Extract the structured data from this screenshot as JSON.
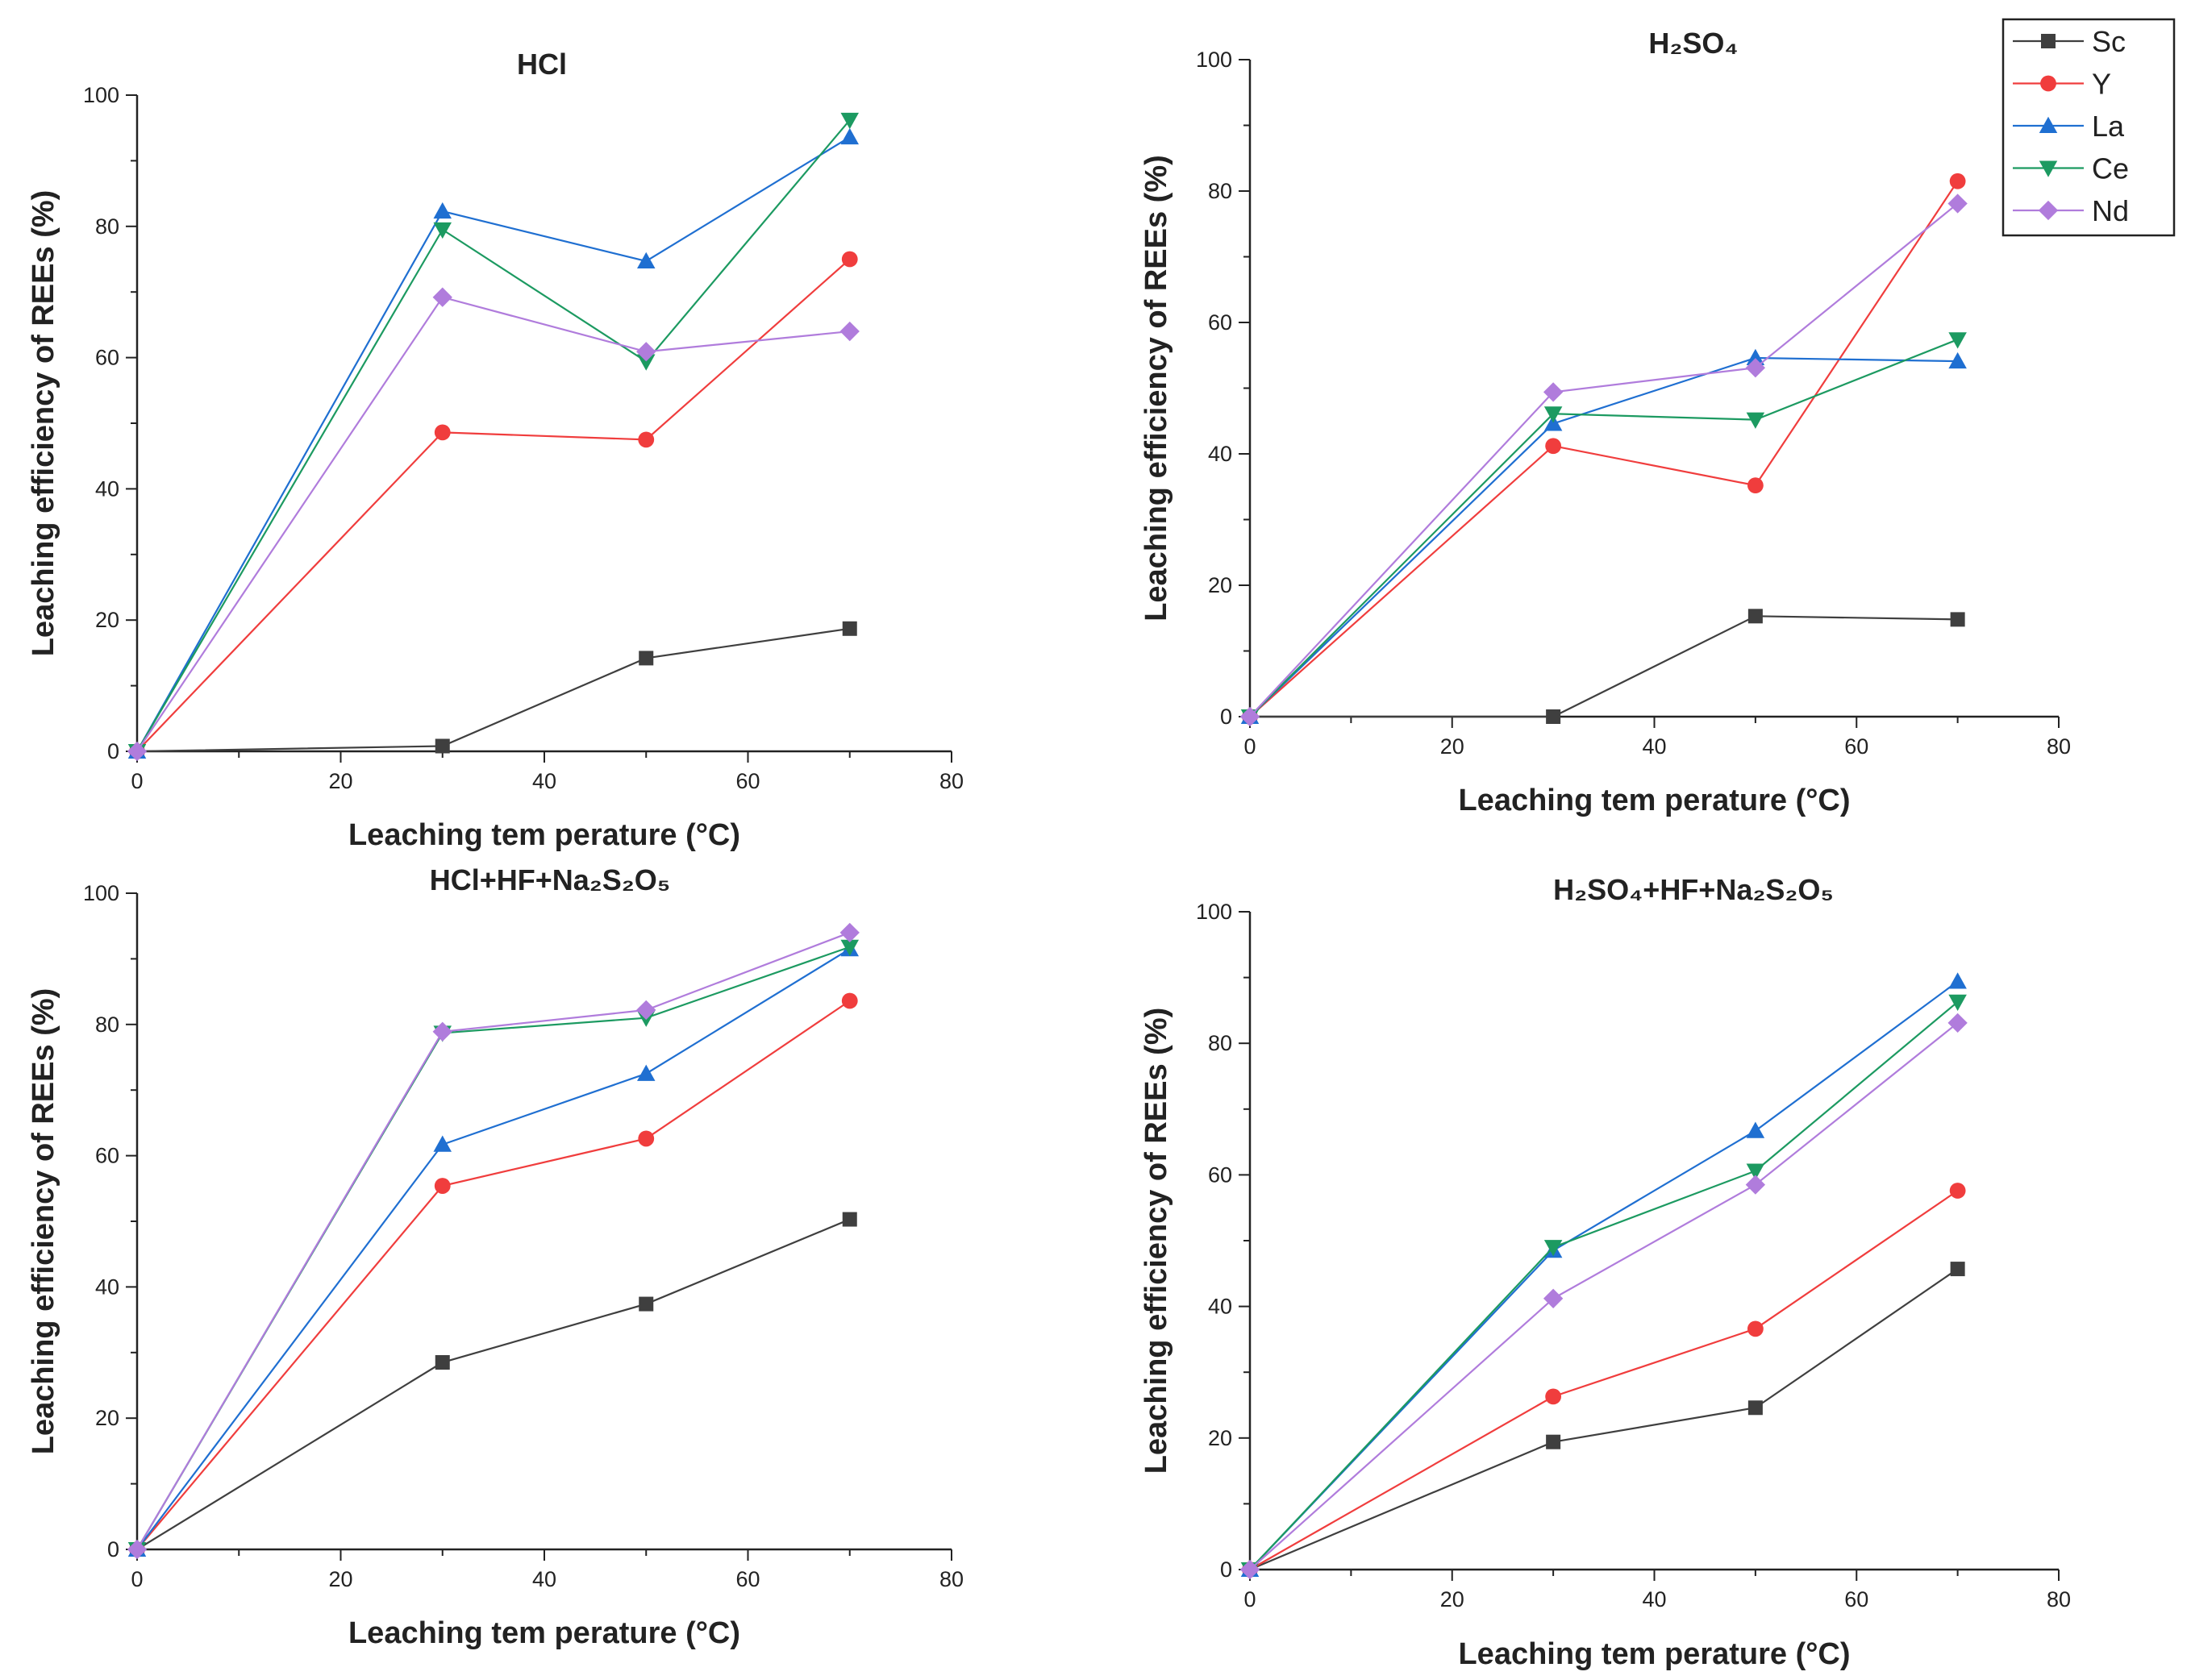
{
  "colors": {
    "Sc": "#3f3f3f",
    "Y": "#f03d3d",
    "La": "#1f6fd1",
    "Ce": "#1c9a61",
    "Nd": "#b07cdc",
    "axis": "#222222"
  },
  "markers": {
    "Sc": "square",
    "Y": "circle",
    "La": "triangle-up",
    "Ce": "triangle-down",
    "Nd": "diamond"
  },
  "legend": {
    "entries": [
      "Sc",
      "Y",
      "La",
      "Ce",
      "Nd"
    ],
    "placement": "top-right"
  },
  "chart_data": [
    {
      "type": "line",
      "title": "HCl",
      "xlabel": "Leaching tem perature (°C)",
      "ylabel": "Leaching efficiency of REEs (%)",
      "xlim": [
        0,
        80
      ],
      "ylim": [
        0,
        100
      ],
      "xticks": [
        0,
        20,
        40,
        60,
        80
      ],
      "yticks": [
        0,
        20,
        40,
        60,
        80,
        100
      ],
      "x": [
        0,
        30,
        50,
        70
      ],
      "series": [
        {
          "name": "Sc",
          "values": [
            0,
            0.8,
            14.2,
            18.7
          ]
        },
        {
          "name": "Y",
          "values": [
            0,
            48.6,
            47.5,
            75.0
          ]
        },
        {
          "name": "La",
          "values": [
            0,
            82.3,
            74.7,
            93.6
          ]
        },
        {
          "name": "Ce",
          "values": [
            0,
            79.5,
            59.4,
            96.2
          ]
        },
        {
          "name": "Nd",
          "values": [
            0,
            69.2,
            60.9,
            64.0
          ]
        }
      ]
    },
    {
      "type": "line",
      "title": "H₂SO₄",
      "xlabel": "Leaching tem perature (°C)",
      "ylabel": "Leaching efficiency of REEs (%)",
      "xlim": [
        0,
        80
      ],
      "ylim": [
        0,
        100
      ],
      "xticks": [
        0,
        20,
        40,
        60,
        80
      ],
      "yticks": [
        0,
        20,
        40,
        60,
        80,
        100
      ],
      "x": [
        0,
        30,
        50,
        70
      ],
      "series": [
        {
          "name": "Sc",
          "values": [
            0,
            0,
            15.3,
            14.8
          ]
        },
        {
          "name": "Y",
          "values": [
            0,
            41.2,
            35.2,
            81.5
          ]
        },
        {
          "name": "La",
          "values": [
            0,
            44.6,
            54.6,
            54.1
          ]
        },
        {
          "name": "Ce",
          "values": [
            0,
            46.1,
            45.2,
            57.4
          ]
        },
        {
          "name": "Nd",
          "values": [
            0,
            49.4,
            53.1,
            78.1
          ]
        }
      ]
    },
    {
      "type": "line",
      "title": "HCl+HF+Na₂S₂O₅",
      "xlabel": "Leaching tem perature (°C)",
      "ylabel": "Leaching efficiency of REEs (%)",
      "xlim": [
        0,
        80
      ],
      "ylim": [
        0,
        100
      ],
      "xticks": [
        0,
        20,
        40,
        60,
        80
      ],
      "yticks": [
        0,
        20,
        40,
        60,
        80,
        100
      ],
      "x": [
        0,
        30,
        50,
        70
      ],
      "series": [
        {
          "name": "Sc",
          "values": [
            0,
            28.5,
            37.4,
            50.3
          ]
        },
        {
          "name": "Y",
          "values": [
            0,
            55.4,
            62.6,
            83.6
          ]
        },
        {
          "name": "La",
          "values": [
            0,
            61.7,
            72.5,
            91.5
          ]
        },
        {
          "name": "Ce",
          "values": [
            0,
            78.7,
            81.0,
            91.8
          ]
        },
        {
          "name": "Nd",
          "values": [
            0,
            78.9,
            82.2,
            94.0
          ]
        }
      ]
    },
    {
      "type": "line",
      "title": "H₂SO₄+HF+Na₂S₂O₅",
      "xlabel": "Leaching tem perature (°C)",
      "ylabel": "Leaching efficiency of REEs (%)",
      "xlim": [
        0,
        80
      ],
      "ylim": [
        0,
        100
      ],
      "xticks": [
        0,
        20,
        40,
        60,
        80
      ],
      "yticks": [
        0,
        20,
        40,
        60,
        80,
        100
      ],
      "x": [
        0,
        30,
        50,
        70
      ],
      "series": [
        {
          "name": "Sc",
          "values": [
            0,
            19.4,
            24.6,
            45.7
          ]
        },
        {
          "name": "Y",
          "values": [
            0,
            26.3,
            36.6,
            57.6
          ]
        },
        {
          "name": "La",
          "values": [
            0,
            48.5,
            66.7,
            89.4
          ]
        },
        {
          "name": "Ce",
          "values": [
            0,
            49.0,
            60.6,
            86.3
          ]
        },
        {
          "name": "Nd",
          "values": [
            0,
            41.2,
            58.5,
            83.1
          ]
        }
      ]
    }
  ]
}
